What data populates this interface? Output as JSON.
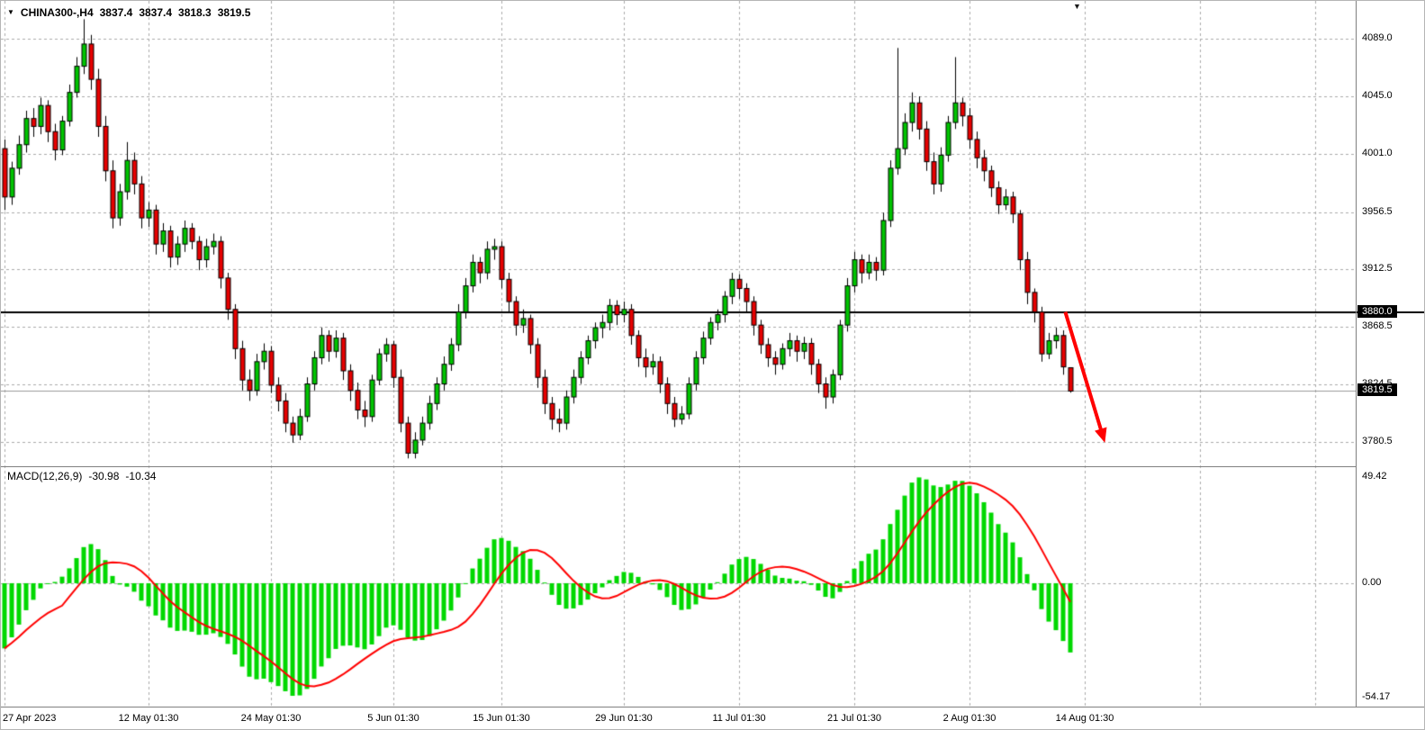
{
  "header": {
    "symbol_tf": "CHINA300-,H4",
    "open": "3837.4",
    "high": "3837.4",
    "low": "3818.3",
    "close": "3819.5"
  },
  "icons": {
    "symbol_marker": "▼",
    "shift_marker": "▼"
  },
  "macd_header": {
    "label": "MACD(12,26,9)",
    "main_value": "-30.98",
    "signal_value": "-10.34"
  },
  "colors": {
    "bull": "#00C400",
    "bear": "#E60000",
    "outline": "#000000",
    "macd_histogram": "#00D800",
    "macd_signal": "#FF0000",
    "grid": "#AAAAAA",
    "hline": "#000000",
    "bid_line": "#9A9A9A",
    "arrow": "#FF0000",
    "tag_bg": "#000000",
    "tag_text": "#FFFFFF"
  },
  "chart_data": {
    "type": "candlestick",
    "symbol": "CHINA300-",
    "timeframe": "H4",
    "price_axis": {
      "view_max": 4118,
      "view_min": 3762,
      "ticks": [
        {
          "text": "4089.0",
          "value": 4089.0
        },
        {
          "text": "4045.0",
          "value": 4045.0
        },
        {
          "text": "4001.0",
          "value": 4001.0
        },
        {
          "text": "3956.5",
          "value": 3956.5
        },
        {
          "text": "3912.5",
          "value": 3912.5
        },
        {
          "text": "3868.5",
          "value": 3868.5
        },
        {
          "text": "3824.5",
          "value": 3824.5
        },
        {
          "text": "3780.5",
          "value": 3780.5
        }
      ]
    },
    "hline_price": 3880.0,
    "hline_tag": "3880.0",
    "bid_price": 3819.5,
    "bid_tag": "3819.5",
    "candles": [
      [
        4005,
        4012,
        3958,
        3968
      ],
      [
        3968,
        3995,
        3962,
        3990
      ],
      [
        3990,
        4015,
        3985,
        4008
      ],
      [
        4008,
        4034,
        4002,
        4028
      ],
      [
        4028,
        4036,
        4014,
        4022
      ],
      [
        4022,
        4044,
        4016,
        4038
      ],
      [
        4038,
        4042,
        4010,
        4018
      ],
      [
        4018,
        4024,
        3996,
        4004
      ],
      [
        4004,
        4030,
        4000,
        4026
      ],
      [
        4026,
        4054,
        4022,
        4048
      ],
      [
        4048,
        4075,
        4044,
        4068
      ],
      [
        4068,
        4104,
        4062,
        4085
      ],
      [
        4085,
        4092,
        4050,
        4058
      ],
      [
        4058,
        4066,
        4014,
        4022
      ],
      [
        4022,
        4030,
        3980,
        3988
      ],
      [
        3988,
        3996,
        3944,
        3952
      ],
      [
        3952,
        3978,
        3946,
        3972
      ],
      [
        3972,
        4010,
        3966,
        3996
      ],
      [
        3996,
        4002,
        3970,
        3978
      ],
      [
        3978,
        3984,
        3944,
        3952
      ],
      [
        3952,
        3964,
        3945,
        3958
      ],
      [
        3958,
        3962,
        3924,
        3932
      ],
      [
        3932,
        3948,
        3926,
        3942
      ],
      [
        3942,
        3946,
        3914,
        3922
      ],
      [
        3922,
        3938,
        3916,
        3932
      ],
      [
        3932,
        3950,
        3926,
        3944
      ],
      [
        3944,
        3948,
        3928,
        3934
      ],
      [
        3934,
        3938,
        3912,
        3920
      ],
      [
        3920,
        3936,
        3914,
        3930
      ],
      [
        3930,
        3940,
        3924,
        3934
      ],
      [
        3934,
        3938,
        3898,
        3906
      ],
      [
        3906,
        3910,
        3874,
        3882
      ],
      [
        3882,
        3886,
        3844,
        3852
      ],
      [
        3852,
        3858,
        3820,
        3828
      ],
      [
        3828,
        3836,
        3812,
        3820
      ],
      [
        3820,
        3848,
        3816,
        3842
      ],
      [
        3842,
        3856,
        3836,
        3850
      ],
      [
        3850,
        3854,
        3818,
        3824
      ],
      [
        3824,
        3830,
        3804,
        3812
      ],
      [
        3812,
        3818,
        3788,
        3795
      ],
      [
        3795,
        3800,
        3780,
        3786
      ],
      [
        3786,
        3806,
        3782,
        3800
      ],
      [
        3800,
        3830,
        3796,
        3825
      ],
      [
        3825,
        3850,
        3820,
        3845
      ],
      [
        3845,
        3868,
        3840,
        3862
      ],
      [
        3862,
        3866,
        3842,
        3850
      ],
      [
        3850,
        3866,
        3845,
        3860
      ],
      [
        3860,
        3864,
        3828,
        3835
      ],
      [
        3835,
        3840,
        3812,
        3820
      ],
      [
        3820,
        3826,
        3798,
        3805
      ],
      [
        3805,
        3812,
        3792,
        3800
      ],
      [
        3800,
        3832,
        3796,
        3828
      ],
      [
        3828,
        3852,
        3824,
        3848
      ],
      [
        3848,
        3860,
        3842,
        3855
      ],
      [
        3855,
        3858,
        3822,
        3830
      ],
      [
        3830,
        3836,
        3788,
        3795
      ],
      [
        3795,
        3800,
        3768,
        3772
      ],
      [
        3772,
        3788,
        3768,
        3782
      ],
      [
        3782,
        3800,
        3778,
        3795
      ],
      [
        3795,
        3816,
        3790,
        3810
      ],
      [
        3810,
        3830,
        3805,
        3825
      ],
      [
        3825,
        3846,
        3820,
        3840
      ],
      [
        3840,
        3860,
        3835,
        3855
      ],
      [
        3855,
        3886,
        3850,
        3880
      ],
      [
        3880,
        3906,
        3875,
        3900
      ],
      [
        3900,
        3924,
        3895,
        3918
      ],
      [
        3918,
        3922,
        3902,
        3910
      ],
      [
        3910,
        3934,
        3905,
        3928
      ],
      [
        3928,
        3936,
        3920,
        3930
      ],
      [
        3930,
        3934,
        3898,
        3905
      ],
      [
        3905,
        3910,
        3880,
        3888
      ],
      [
        3888,
        3892,
        3862,
        3870
      ],
      [
        3870,
        3882,
        3864,
        3875
      ],
      [
        3875,
        3878,
        3848,
        3855
      ],
      [
        3855,
        3860,
        3822,
        3830
      ],
      [
        3830,
        3836,
        3802,
        3810
      ],
      [
        3810,
        3815,
        3790,
        3798
      ],
      [
        3798,
        3806,
        3788,
        3795
      ],
      [
        3795,
        3820,
        3790,
        3815
      ],
      [
        3815,
        3836,
        3810,
        3830
      ],
      [
        3830,
        3850,
        3825,
        3845
      ],
      [
        3845,
        3862,
        3840,
        3858
      ],
      [
        3858,
        3872,
        3852,
        3868
      ],
      [
        3868,
        3878,
        3860,
        3872
      ],
      [
        3872,
        3890,
        3866,
        3885
      ],
      [
        3885,
        3889,
        3870,
        3878
      ],
      [
        3878,
        3888,
        3872,
        3882
      ],
      [
        3882,
        3886,
        3855,
        3862
      ],
      [
        3862,
        3866,
        3838,
        3845
      ],
      [
        3845,
        3852,
        3830,
        3838
      ],
      [
        3838,
        3848,
        3832,
        3842
      ],
      [
        3842,
        3846,
        3818,
        3825
      ],
      [
        3825,
        3830,
        3802,
        3810
      ],
      [
        3810,
        3815,
        3792,
        3798
      ],
      [
        3798,
        3808,
        3794,
        3802
      ],
      [
        3802,
        3830,
        3798,
        3825
      ],
      [
        3825,
        3850,
        3820,
        3845
      ],
      [
        3845,
        3865,
        3840,
        3860
      ],
      [
        3860,
        3876,
        3855,
        3872
      ],
      [
        3872,
        3882,
        3866,
        3878
      ],
      [
        3878,
        3896,
        3872,
        3892
      ],
      [
        3892,
        3910,
        3886,
        3905
      ],
      [
        3905,
        3909,
        3890,
        3898
      ],
      [
        3898,
        3902,
        3880,
        3888
      ],
      [
        3888,
        3892,
        3862,
        3870
      ],
      [
        3870,
        3874,
        3848,
        3855
      ],
      [
        3855,
        3860,
        3838,
        3845
      ],
      [
        3845,
        3850,
        3832,
        3840
      ],
      [
        3840,
        3856,
        3836,
        3852
      ],
      [
        3852,
        3864,
        3846,
        3858
      ],
      [
        3858,
        3862,
        3842,
        3850
      ],
      [
        3850,
        3861,
        3844,
        3856
      ],
      [
        3856,
        3860,
        3832,
        3840
      ],
      [
        3840,
        3844,
        3818,
        3825
      ],
      [
        3825,
        3830,
        3806,
        3815
      ],
      [
        3815,
        3836,
        3810,
        3832
      ],
      [
        3832,
        3874,
        3828,
        3870
      ],
      [
        3870,
        3906,
        3865,
        3900
      ],
      [
        3900,
        3926,
        3895,
        3920
      ],
      [
        3920,
        3924,
        3902,
        3910
      ],
      [
        3910,
        3924,
        3905,
        3918
      ],
      [
        3918,
        3922,
        3904,
        3912
      ],
      [
        3912,
        3956,
        3908,
        3950
      ],
      [
        3950,
        3996,
        3945,
        3990
      ],
      [
        3990,
        4082,
        3985,
        4005
      ],
      [
        4005,
        4032,
        4000,
        4025
      ],
      [
        4025,
        4048,
        4018,
        4040
      ],
      [
        4040,
        4045,
        4012,
        4020
      ],
      [
        4020,
        4026,
        3988,
        3995
      ],
      [
        3995,
        4002,
        3970,
        3978
      ],
      [
        3978,
        4006,
        3972,
        4000
      ],
      [
        4000,
        4030,
        3995,
        4025
      ],
      [
        4025,
        4075,
        4020,
        4040
      ],
      [
        4040,
        4044,
        4022,
        4030
      ],
      [
        4030,
        4036,
        4005,
        4012
      ],
      [
        4012,
        4018,
        3990,
        3998
      ],
      [
        3998,
        4004,
        3980,
        3988
      ],
      [
        3988,
        3992,
        3968,
        3975
      ],
      [
        3975,
        3980,
        3955,
        3962
      ],
      [
        3962,
        3974,
        3958,
        3968
      ],
      [
        3968,
        3972,
        3948,
        3955
      ],
      [
        3955,
        3958,
        3912,
        3920
      ],
      [
        3920,
        3926,
        3886,
        3895
      ],
      [
        3895,
        3898,
        3872,
        3880
      ],
      [
        3880,
        3884,
        3842,
        3848
      ],
      [
        3848,
        3864,
        3844,
        3858
      ],
      [
        3858,
        3868,
        3852,
        3862
      ],
      [
        3862,
        3866,
        3832,
        3838
      ],
      [
        3837.4,
        3837.4,
        3818.3,
        3819.5
      ]
    ],
    "time_labels": [
      {
        "text": "27 Apr 2023",
        "index": 0
      },
      {
        "text": "12 May 01:30",
        "index": 20
      },
      {
        "text": "24 May 01:30",
        "index": 37
      },
      {
        "text": "5 Jun 01:30",
        "index": 54
      },
      {
        "text": "15 Jun 01:30",
        "index": 69
      },
      {
        "text": "29 Jun 01:30",
        "index": 86
      },
      {
        "text": "11 Jul 01:30",
        "index": 102
      },
      {
        "text": "21 Jul 01:30",
        "index": 118
      },
      {
        "text": "2 Aug 01:30",
        "index": 134
      },
      {
        "text": "14 Aug 01:30",
        "index": 150
      }
    ],
    "extra_vgrid_indices": [
      166,
      182
    ],
    "macd": {
      "fast": 12,
      "slow": 26,
      "signal": 9,
      "axis_labels": [
        "49.42",
        "0.00",
        "-54.17"
      ],
      "current_main": -30.98,
      "current_signal": -10.34
    },
    "arrow": {
      "bar1": 147.3,
      "price1": 3880,
      "bar2": 152.8,
      "price2": 3780
    }
  }
}
